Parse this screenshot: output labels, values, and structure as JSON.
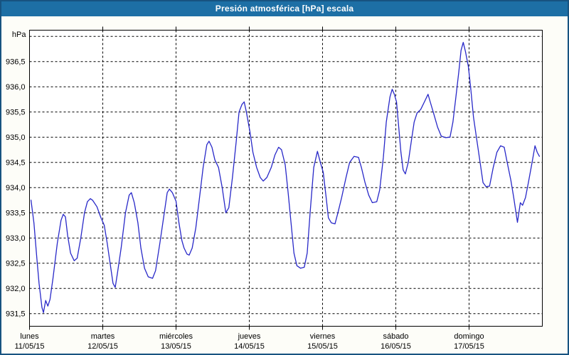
{
  "window": {
    "title": "Presión atmosférica [hPa] escala"
  },
  "colors": {
    "titlebar_bg": "#1d6fa5",
    "frame_border": "#175380",
    "content_bg": "#fdfdf8",
    "plot_bg": "#ffffff",
    "grid": "#000000",
    "line": "#2828c8",
    "text": "#000000",
    "title_text": "#ffffff"
  },
  "chart_data": {
    "type": "line",
    "title": "Presión atmosférica [hPa] escala",
    "unit_label": "hPa",
    "ylabel": "hPa",
    "xlabel": "",
    "grid": true,
    "legend_position": "none",
    "ylim": [
      931.25,
      937.15
    ],
    "y_ticks_labeled": [
      936.5,
      936.0,
      935.5,
      935.0,
      934.5,
      934.0,
      933.5,
      933.0,
      932.5,
      932.0,
      931.5
    ],
    "y_gridlines": [
      937.0,
      936.5,
      936.0,
      935.5,
      935.0,
      934.5,
      934.0,
      933.5,
      933.0,
      932.5,
      932.0,
      931.5
    ],
    "y_tick_decimal_separator": ",",
    "x_range_days": [
      0,
      7
    ],
    "x_days": [
      {
        "name": "lunes",
        "date": "11/05/15"
      },
      {
        "name": "martes",
        "date": "12/05/15"
      },
      {
        "name": "miércoles",
        "date": "13/05/15"
      },
      {
        "name": "jueves",
        "date": "14/05/15"
      },
      {
        "name": "viernes",
        "date": "15/05/15"
      },
      {
        "name": "sábado",
        "date": "16/05/15"
      },
      {
        "name": "domingo",
        "date": "17/05/15"
      }
    ],
    "series": [
      {
        "name": "Presión atmosférica",
        "units": "hPa",
        "points": [
          [
            0.02,
            933.75
          ],
          [
            0.06,
            933.3
          ],
          [
            0.1,
            932.6
          ],
          [
            0.13,
            932.1
          ],
          [
            0.17,
            931.62
          ],
          [
            0.19,
            931.52
          ],
          [
            0.22,
            931.76
          ],
          [
            0.25,
            931.65
          ],
          [
            0.28,
            931.78
          ],
          [
            0.32,
            932.2
          ],
          [
            0.38,
            932.9
          ],
          [
            0.43,
            933.35
          ],
          [
            0.46,
            933.47
          ],
          [
            0.49,
            933.42
          ],
          [
            0.52,
            933.05
          ],
          [
            0.56,
            932.7
          ],
          [
            0.61,
            932.55
          ],
          [
            0.65,
            932.6
          ],
          [
            0.7,
            933.0
          ],
          [
            0.75,
            933.5
          ],
          [
            0.79,
            933.72
          ],
          [
            0.83,
            933.78
          ],
          [
            0.86,
            933.75
          ],
          [
            0.92,
            933.62
          ],
          [
            0.97,
            933.42
          ],
          [
            1.02,
            933.25
          ],
          [
            1.06,
            932.9
          ],
          [
            1.1,
            932.5
          ],
          [
            1.14,
            932.1
          ],
          [
            1.17,
            932.02
          ],
          [
            1.2,
            932.3
          ],
          [
            1.25,
            932.8
          ],
          [
            1.31,
            933.5
          ],
          [
            1.36,
            933.85
          ],
          [
            1.39,
            933.9
          ],
          [
            1.43,
            933.7
          ],
          [
            1.48,
            933.3
          ],
          [
            1.52,
            932.8
          ],
          [
            1.57,
            932.4
          ],
          [
            1.62,
            932.23
          ],
          [
            1.68,
            932.2
          ],
          [
            1.72,
            932.35
          ],
          [
            1.78,
            932.9
          ],
          [
            1.84,
            933.5
          ],
          [
            1.88,
            933.9
          ],
          [
            1.91,
            933.97
          ],
          [
            1.95,
            933.9
          ],
          [
            2.0,
            933.73
          ],
          [
            2.04,
            933.3
          ],
          [
            2.08,
            932.95
          ],
          [
            2.11,
            932.8
          ],
          [
            2.15,
            932.68
          ],
          [
            2.18,
            932.66
          ],
          [
            2.22,
            932.8
          ],
          [
            2.27,
            933.2
          ],
          [
            2.32,
            933.8
          ],
          [
            2.37,
            934.4
          ],
          [
            2.42,
            934.85
          ],
          [
            2.45,
            934.92
          ],
          [
            2.49,
            934.8
          ],
          [
            2.53,
            934.55
          ],
          [
            2.58,
            934.4
          ],
          [
            2.63,
            934.0
          ],
          [
            2.68,
            933.5
          ],
          [
            2.72,
            933.6
          ],
          [
            2.77,
            934.2
          ],
          [
            2.82,
            934.9
          ],
          [
            2.86,
            935.5
          ],
          [
            2.9,
            935.65
          ],
          [
            2.93,
            935.7
          ],
          [
            2.96,
            935.5
          ],
          [
            3.01,
            935.1
          ],
          [
            3.05,
            934.7
          ],
          [
            3.1,
            934.4
          ],
          [
            3.15,
            934.2
          ],
          [
            3.19,
            934.13
          ],
          [
            3.24,
            934.2
          ],
          [
            3.3,
            934.4
          ],
          [
            3.35,
            934.65
          ],
          [
            3.4,
            934.8
          ],
          [
            3.44,
            934.75
          ],
          [
            3.49,
            934.45
          ],
          [
            3.53,
            933.9
          ],
          [
            3.57,
            933.3
          ],
          [
            3.61,
            932.7
          ],
          [
            3.65,
            932.45
          ],
          [
            3.7,
            932.4
          ],
          [
            3.75,
            932.42
          ],
          [
            3.79,
            932.7
          ],
          [
            3.83,
            933.5
          ],
          [
            3.88,
            934.4
          ],
          [
            3.93,
            934.72
          ],
          [
            3.97,
            934.5
          ],
          [
            4.01,
            934.3
          ],
          [
            4.05,
            933.8
          ],
          [
            4.08,
            933.4
          ],
          [
            4.12,
            933.3
          ],
          [
            4.17,
            933.28
          ],
          [
            4.21,
            933.5
          ],
          [
            4.26,
            933.8
          ],
          [
            4.32,
            934.2
          ],
          [
            4.37,
            934.5
          ],
          [
            4.43,
            934.62
          ],
          [
            4.49,
            934.6
          ],
          [
            4.53,
            934.4
          ],
          [
            4.58,
            934.1
          ],
          [
            4.63,
            933.85
          ],
          [
            4.68,
            933.7
          ],
          [
            4.74,
            933.72
          ],
          [
            4.78,
            933.95
          ],
          [
            4.83,
            934.6
          ],
          [
            4.87,
            935.3
          ],
          [
            4.92,
            935.8
          ],
          [
            4.95,
            935.95
          ],
          [
            4.98,
            935.85
          ],
          [
            5.01,
            935.7
          ],
          [
            5.04,
            935.2
          ],
          [
            5.07,
            934.7
          ],
          [
            5.1,
            934.35
          ],
          [
            5.13,
            934.27
          ],
          [
            5.17,
            934.5
          ],
          [
            5.21,
            934.9
          ],
          [
            5.25,
            935.3
          ],
          [
            5.29,
            935.48
          ],
          [
            5.34,
            935.55
          ],
          [
            5.39,
            935.7
          ],
          [
            5.44,
            935.85
          ],
          [
            5.47,
            935.7
          ],
          [
            5.52,
            935.45
          ],
          [
            5.57,
            935.2
          ],
          [
            5.62,
            935.02
          ],
          [
            5.68,
            934.99
          ],
          [
            5.74,
            935.0
          ],
          [
            5.78,
            935.3
          ],
          [
            5.82,
            935.8
          ],
          [
            5.86,
            936.3
          ],
          [
            5.89,
            936.72
          ],
          [
            5.92,
            936.88
          ],
          [
            5.95,
            936.7
          ],
          [
            5.99,
            936.4
          ],
          [
            6.02,
            936.0
          ],
          [
            6.06,
            935.4
          ],
          [
            6.1,
            935.0
          ],
          [
            6.15,
            934.5
          ],
          [
            6.19,
            934.1
          ],
          [
            6.23,
            934.02
          ],
          [
            6.28,
            934.03
          ],
          [
            6.33,
            934.4
          ],
          [
            6.38,
            934.7
          ],
          [
            6.43,
            934.83
          ],
          [
            6.48,
            934.8
          ],
          [
            6.52,
            934.5
          ],
          [
            6.57,
            934.15
          ],
          [
            6.61,
            933.8
          ],
          [
            6.66,
            933.31
          ],
          [
            6.7,
            933.7
          ],
          [
            6.73,
            933.65
          ],
          [
            6.77,
            933.8
          ],
          [
            6.81,
            934.1
          ],
          [
            6.86,
            934.5
          ],
          [
            6.9,
            934.83
          ],
          [
            6.93,
            934.7
          ],
          [
            6.96,
            934.62
          ]
        ]
      }
    ]
  }
}
